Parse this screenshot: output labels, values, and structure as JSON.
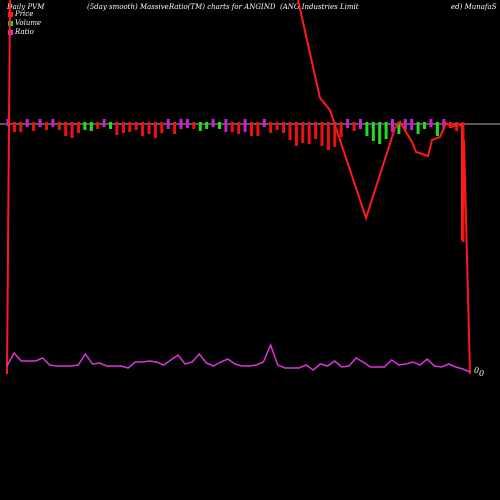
{
  "header": {
    "left": "Daily PVM",
    "mid": "(5day smooth) MassiveRatio(TM) charts for ANGIND",
    "company": "(ANG Industries Limit",
    "right": "ed) MunafaS"
  },
  "legend": {
    "price": "Price",
    "volume": "Volume",
    "ratio": "Ratio"
  },
  "colors": {
    "price": "#ff1a1a",
    "up": "#22dd22",
    "down": "#ee1111",
    "neutral": "#cc22cc",
    "ratio": "#dd33dd",
    "baseline": "#b0b0b0"
  },
  "chart_data": {
    "type": "line",
    "volume_bars": {
      "description": "volume/PVM bars around the midline; value = bar extent",
      "values": [
        [
          "n",
          2
        ],
        [
          "d",
          8
        ],
        [
          "d",
          8
        ],
        [
          "n",
          3
        ],
        [
          "d",
          7
        ],
        [
          "n",
          3
        ],
        [
          "d",
          6
        ],
        [
          "n",
          3
        ],
        [
          "d",
          6
        ],
        [
          "d",
          12
        ],
        [
          "d",
          14
        ],
        [
          "d",
          9
        ],
        [
          "u",
          6
        ],
        [
          "u",
          7
        ],
        [
          "d",
          5
        ],
        [
          "n",
          3
        ],
        [
          "u",
          5
        ],
        [
          "d",
          11
        ],
        [
          "d",
          9
        ],
        [
          "d",
          8
        ],
        [
          "d",
          6
        ],
        [
          "d",
          12
        ],
        [
          "d",
          10
        ],
        [
          "d",
          14
        ],
        [
          "d",
          9
        ],
        [
          "n",
          5
        ],
        [
          "d",
          10
        ],
        [
          "n",
          5
        ],
        [
          "n",
          4
        ],
        [
          "d",
          5
        ],
        [
          "u",
          7
        ],
        [
          "u",
          5
        ],
        [
          "n",
          3
        ],
        [
          "u",
          5
        ],
        [
          "n",
          8
        ],
        [
          "d",
          8
        ],
        [
          "d",
          10
        ],
        [
          "n",
          8
        ],
        [
          "d",
          12
        ],
        [
          "d",
          12
        ],
        [
          "n",
          3
        ],
        [
          "d",
          9
        ],
        [
          "d",
          6
        ],
        [
          "d",
          9
        ],
        [
          "d",
          16
        ],
        [
          "d",
          22
        ],
        [
          "d",
          19
        ],
        [
          "d",
          20
        ],
        [
          "d",
          15
        ],
        [
          "d",
          22
        ],
        [
          "d",
          26
        ],
        [
          "d",
          23
        ],
        [
          "d",
          13
        ],
        [
          "n",
          4
        ],
        [
          "d",
          7
        ],
        [
          "n",
          5
        ],
        [
          "u",
          12
        ],
        [
          "u",
          17
        ],
        [
          "u",
          20
        ],
        [
          "u",
          15
        ],
        [
          "n",
          8
        ],
        [
          "u",
          10
        ],
        [
          "n",
          6
        ],
        [
          "n",
          6
        ],
        [
          "u",
          10
        ],
        [
          "u",
          5
        ],
        [
          "n",
          3
        ],
        [
          "u",
          12
        ],
        [
          "n",
          5
        ],
        [
          "d",
          4
        ],
        [
          "d",
          7
        ],
        [
          "d",
          118
        ]
      ]
    },
    "price_line": {
      "x": [
        1,
        2,
        3,
        4,
        5,
        6,
        7,
        8,
        9,
        10,
        11,
        12,
        13,
        14,
        15,
        16,
        17,
        18,
        19,
        20
      ],
      "y": [
        960,
        1000,
        1130,
        430,
        422,
        370,
        255,
        333,
        420,
        390,
        395,
        368,
        372,
        385,
        393,
        380,
        388,
        385,
        380,
        248
      ],
      "ylim": [
        200,
        1120
      ]
    },
    "ratio_line": {
      "values": [
        8,
        21,
        13,
        13,
        13,
        16,
        9,
        8,
        8,
        8,
        9,
        20,
        10,
        11,
        8,
        8,
        8,
        6,
        12,
        12,
        13,
        12,
        9,
        14,
        19,
        10,
        12,
        20,
        11,
        8,
        12,
        15,
        10,
        8,
        8,
        9,
        12,
        29,
        9,
        6,
        6,
        6,
        9,
        4,
        10,
        8,
        13,
        7,
        8,
        16,
        12,
        7,
        7,
        7,
        14,
        9,
        10,
        12,
        9,
        15,
        8,
        7,
        10,
        7,
        5,
        2
      ],
      "ylim": [
        0,
        40
      ]
    },
    "end_label": "0",
    "zero_label": "0"
  }
}
